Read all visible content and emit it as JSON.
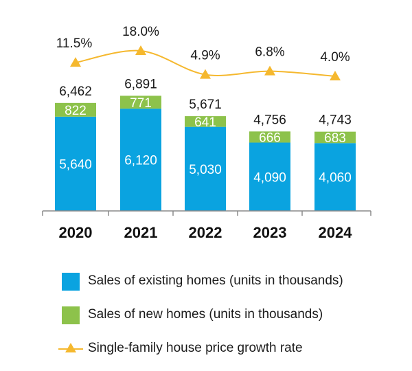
{
  "chart_data": {
    "type": "bar",
    "stacked": true,
    "categories": [
      "2020",
      "2021",
      "2022",
      "2023",
      "2024"
    ],
    "series": [
      {
        "name": "Sales of existing homes (units in thousands)",
        "type": "bar",
        "color": "#0aa3e0",
        "values": [
          5640,
          6120,
          5030,
          4090,
          4060
        ],
        "labels": [
          "5,640",
          "6,120",
          "5,030",
          "4,090",
          "4,060"
        ]
      },
      {
        "name": "Sales of new homes (units in thousands)",
        "type": "bar",
        "color": "#8dc24b",
        "values": [
          822,
          771,
          641,
          666,
          683
        ],
        "labels": [
          "822",
          "771",
          "641",
          "666",
          "683"
        ]
      },
      {
        "name": "Single-family house price growth rate",
        "type": "line",
        "color": "#f5b82e",
        "marker": "triangle",
        "values": [
          11.5,
          18.0,
          4.9,
          6.8,
          4.0
        ],
        "labels": [
          "11.5%",
          "18.0%",
          "4.9%",
          "6.8%",
          "4.0%"
        ]
      }
    ],
    "totals": [
      "6,462",
      "6,891",
      "5,671",
      "4,756",
      "4,743"
    ],
    "xlabel": "",
    "ylabel": "",
    "ylim": [
      0,
      8100
    ],
    "grid": false,
    "legend_position": "bottom"
  }
}
